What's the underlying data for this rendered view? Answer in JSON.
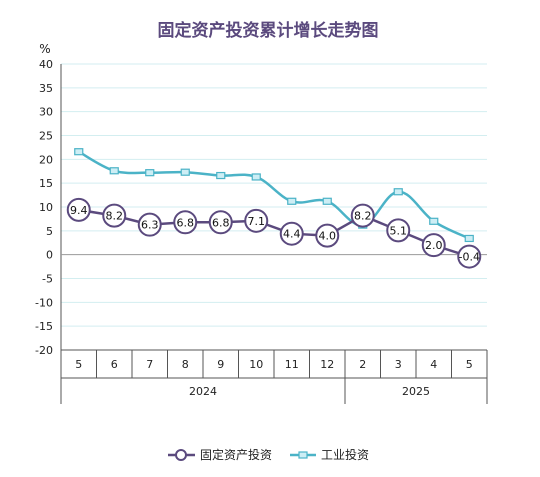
{
  "chart_data": {
    "type": "line",
    "title": "固定资产投资累计增长走势图",
    "ylabel": "%",
    "ylim": [
      -20,
      40
    ],
    "yticks": [
      40,
      35,
      30,
      25,
      20,
      15,
      10,
      5,
      0,
      -5,
      -10,
      -15,
      -20
    ],
    "categories": [
      "5",
      "6",
      "7",
      "8",
      "9",
      "10",
      "11",
      "12",
      "2",
      "3",
      "4",
      "5"
    ],
    "groups": [
      {
        "label": "2024",
        "from": 0,
        "to": 7
      },
      {
        "label": "2025",
        "from": 8,
        "to": 11
      }
    ],
    "grid": true,
    "legend_position": "bottom",
    "series": [
      {
        "name": "固定资产投资",
        "color": "#5b4a7e",
        "values": [
          9.4,
          8.2,
          6.3,
          6.8,
          6.8,
          7.1,
          4.4,
          4.0,
          8.2,
          5.1,
          2.0,
          -0.4
        ],
        "labels": [
          "9.4",
          "8.2",
          "6.3",
          "6.8",
          "6.8",
          "7.1",
          "4.4",
          "4.0",
          "8.2",
          "5.1",
          "2.0",
          "-0.4"
        ]
      },
      {
        "name": "工业投资",
        "color": "#4bb3c7",
        "values": [
          21.6,
          17.6,
          17.2,
          17.3,
          16.6,
          16.3,
          11.2,
          11.2,
          6.2,
          13.2,
          7.0,
          3.4
        ]
      }
    ]
  }
}
